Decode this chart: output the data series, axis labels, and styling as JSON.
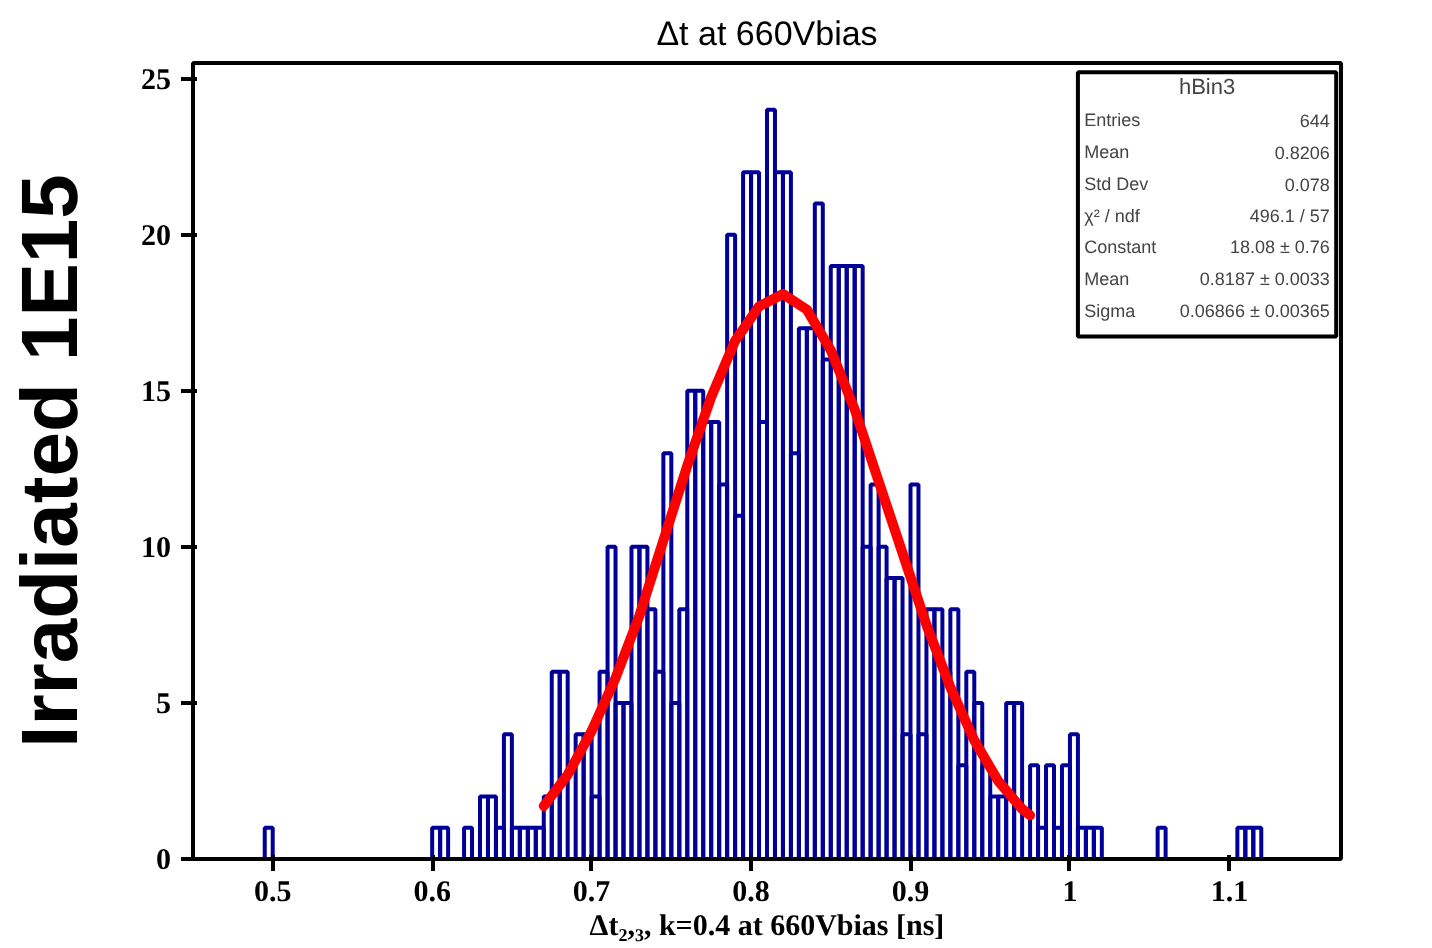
{
  "chart_data": {
    "type": "histogram",
    "title": "Δt at 660Vbias",
    "xlabel": "Δt₂,₃, k=0.4 at 660Vbias [ns]",
    "ylabel": "Irradiated 1E15",
    "bins": [
      0.45,
      0.455,
      0.46,
      0.465,
      0.47,
      0.475,
      0.48,
      0.485,
      0.49,
      0.495,
      0.5,
      0.505,
      0.51,
      0.515,
      0.52,
      0.525,
      0.53,
      0.535,
      0.54,
      0.545,
      0.55,
      0.555,
      0.56,
      0.565,
      0.57,
      0.575,
      0.58,
      0.585,
      0.59,
      0.595,
      0.6,
      0.605,
      0.61,
      0.615,
      0.62,
      0.625,
      0.63,
      0.635,
      0.64,
      0.645,
      0.65,
      0.655,
      0.66,
      0.665,
      0.67,
      0.675,
      0.68,
      0.685,
      0.69,
      0.695,
      0.7,
      0.705,
      0.71,
      0.715,
      0.72,
      0.725,
      0.73,
      0.735,
      0.74,
      0.745,
      0.75,
      0.755,
      0.76,
      0.765,
      0.77,
      0.775,
      0.78,
      0.785,
      0.79,
      0.795,
      0.8,
      0.805,
      0.81,
      0.815,
      0.82,
      0.825,
      0.83,
      0.835,
      0.84,
      0.845,
      0.85,
      0.855,
      0.86,
      0.865,
      0.87,
      0.875,
      0.88,
      0.885,
      0.89,
      0.895,
      0.9,
      0.905,
      0.91,
      0.915,
      0.92,
      0.925,
      0.93,
      0.935,
      0.94,
      0.945,
      0.95,
      0.955,
      0.96,
      0.965,
      0.97,
      0.975,
      0.98,
      0.985,
      0.99,
      0.995,
      1.0,
      1.005,
      1.01,
      1.015,
      1.02,
      1.025,
      1.03,
      1.035,
      1.04,
      1.045,
      1.05,
      1.055,
      1.06,
      1.065,
      1.07,
      1.075,
      1.08,
      1.085,
      1.09,
      1.095,
      1.1,
      1.105,
      1.11,
      1.115,
      1.12,
      1.125,
      1.13,
      1.135,
      1.14,
      1.145,
      1.15,
      1.155,
      1.16,
      1.165,
      1.17
    ],
    "values": [
      0,
      0,
      0,
      0,
      0,
      0,
      0,
      0,
      0,
      1,
      0,
      0,
      0,
      0,
      0,
      0,
      0,
      0,
      0,
      0,
      0,
      0,
      0,
      0,
      0,
      0,
      0,
      0,
      0,
      0,
      1,
      1,
      0,
      0,
      1,
      0,
      2,
      2,
      1,
      4,
      1,
      1,
      1,
      1,
      2,
      6,
      6,
      0,
      4,
      4,
      2,
      6,
      10,
      5,
      5,
      10,
      10,
      8,
      6,
      13,
      5,
      8,
      15,
      15,
      14,
      14,
      12,
      20,
      11,
      22,
      22,
      14,
      24,
      22,
      22,
      13,
      17,
      17,
      21,
      16,
      19,
      19,
      19,
      19,
      10,
      12,
      10,
      9,
      9,
      4,
      12,
      4,
      8,
      8,
      6,
      8,
      3,
      6,
      5,
      3,
      2,
      2,
      5,
      5,
      0,
      3,
      1,
      3,
      1,
      3,
      4,
      1,
      1,
      1,
      0,
      0,
      0,
      0,
      0,
      0,
      0,
      1,
      0,
      0,
      0,
      0,
      0,
      0,
      0,
      0,
      0,
      1,
      1,
      1,
      0,
      0,
      0,
      0,
      0,
      0,
      0,
      0,
      0,
      0
    ],
    "color": "#000099",
    "series": [
      {
        "type": "line",
        "color": "#ff0000",
        "x": [
          0.67,
          0.685,
          0.7,
          0.715,
          0.73,
          0.745,
          0.76,
          0.775,
          0.79,
          0.805,
          0.82,
          0.835,
          0.85,
          0.865,
          0.88,
          0.895,
          0.91,
          0.925,
          0.94,
          0.955,
          0.97,
          0.975
        ],
        "values": [
          1.7,
          2.7,
          4.1,
          5.8,
          7.8,
          10.2,
          12.6,
          14.8,
          16.6,
          17.7,
          18.1,
          17.6,
          16.3,
          14.4,
          12.1,
          9.8,
          7.5,
          5.5,
          3.8,
          2.5,
          1.6,
          1.4
        ]
      }
    ],
    "xlim": [
      0.45,
      1.17
    ],
    "ylim": [
      0,
      25.5
    ],
    "xticks": [
      0.5,
      0.6,
      0.7,
      0.8,
      0.9,
      1,
      1.1
    ],
    "yticks": [
      0,
      5,
      10,
      15,
      20,
      25
    ],
    "grid": false,
    "annotations": [
      "hBin3",
      "Entries",
      "644",
      "Mean",
      "0.8206",
      "Std Dev",
      "0.078",
      "χ² / ndf",
      "496.1 / 57",
      "Constant",
      "18.08 ± 0.76",
      "Mean",
      "0.8187 ± 0.0033",
      "Sigma",
      "0.06866 ± 0.00365"
    ]
  }
}
